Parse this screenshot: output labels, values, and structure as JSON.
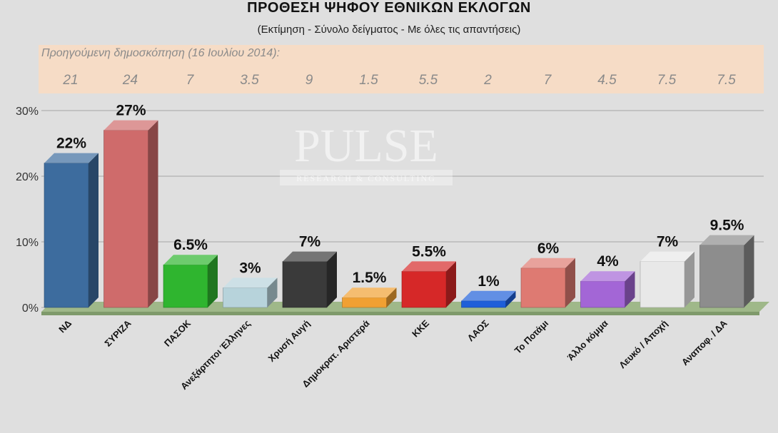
{
  "header": {
    "title": "ΠΡΟΘΕΣΗ ΨΗΦΟΥ ΕΘΝΙΚΩΝ ΕΚΛΟΓΩΝ",
    "subtitle": "(Εκτίμηση - Σύνολο δείγματος - Με όλες τις απαντήσεις)"
  },
  "previous_poll": {
    "label": "Προηγούμενη δημοσκόπηση  (16 Ιουλίου 2014):",
    "values": [
      "21",
      "24",
      "7",
      "3.5",
      "9",
      "1.5",
      "5.5",
      "2",
      "7",
      "4.5",
      "7.5",
      "7.5"
    ]
  },
  "watermark": {
    "brand": "PULSE",
    "tagline": "RESEARCH & CONSULTING"
  },
  "colors": {
    "ND": "#3d6c9e",
    "SYRIZA": "#cf6b6b",
    "PASOK": "#2fb52f",
    "ANEL": "#b7d3db",
    "XA": "#3a3a3a",
    "DIMAR": "#f0a032",
    "KKE": "#d62828",
    "LAOS": "#1e5fd9",
    "POTAMI": "#de7a72",
    "OTHER": "#a366d6",
    "BLANK": "#e8e8e8",
    "UNDECIDED": "#8d8d8d"
  },
  "chart_data": {
    "type": "bar",
    "categories": [
      "ΝΔ",
      "ΣΥΡΙΖΑ",
      "ΠΑΣΟΚ",
      "Ανεξάρτητοι Έλληνες",
      "Χρυσή Αυγή",
      "Δημοκρατ. Αριστερά",
      "ΚΚΕ",
      "ΛΑΟΣ",
      "Το Ποτάμι",
      "Άλλο κόμμα",
      "Λευκό / Αποχή",
      "Αναποφ. / ΔΑ"
    ],
    "values": [
      22,
      27,
      6.5,
      3,
      7,
      1.5,
      5.5,
      1,
      6,
      4,
      7,
      9.5
    ],
    "data_labels": [
      "22%",
      "27%",
      "6.5%",
      "3%",
      "7%",
      "1.5%",
      "5.5%",
      "1%",
      "6%",
      "4%",
      "7%",
      "9.5%"
    ],
    "bar_colors": [
      "#3d6c9e",
      "#cf6b6b",
      "#2fb52f",
      "#b7d3db",
      "#3a3a3a",
      "#f0a032",
      "#d62828",
      "#1e5fd9",
      "#de7a72",
      "#a366d6",
      "#e8e8e8",
      "#8d8d8d"
    ],
    "yticks": [
      "0%",
      "10%",
      "20%",
      "30%"
    ],
    "ylim": [
      0,
      30
    ],
    "grid": true,
    "style": "3d"
  }
}
